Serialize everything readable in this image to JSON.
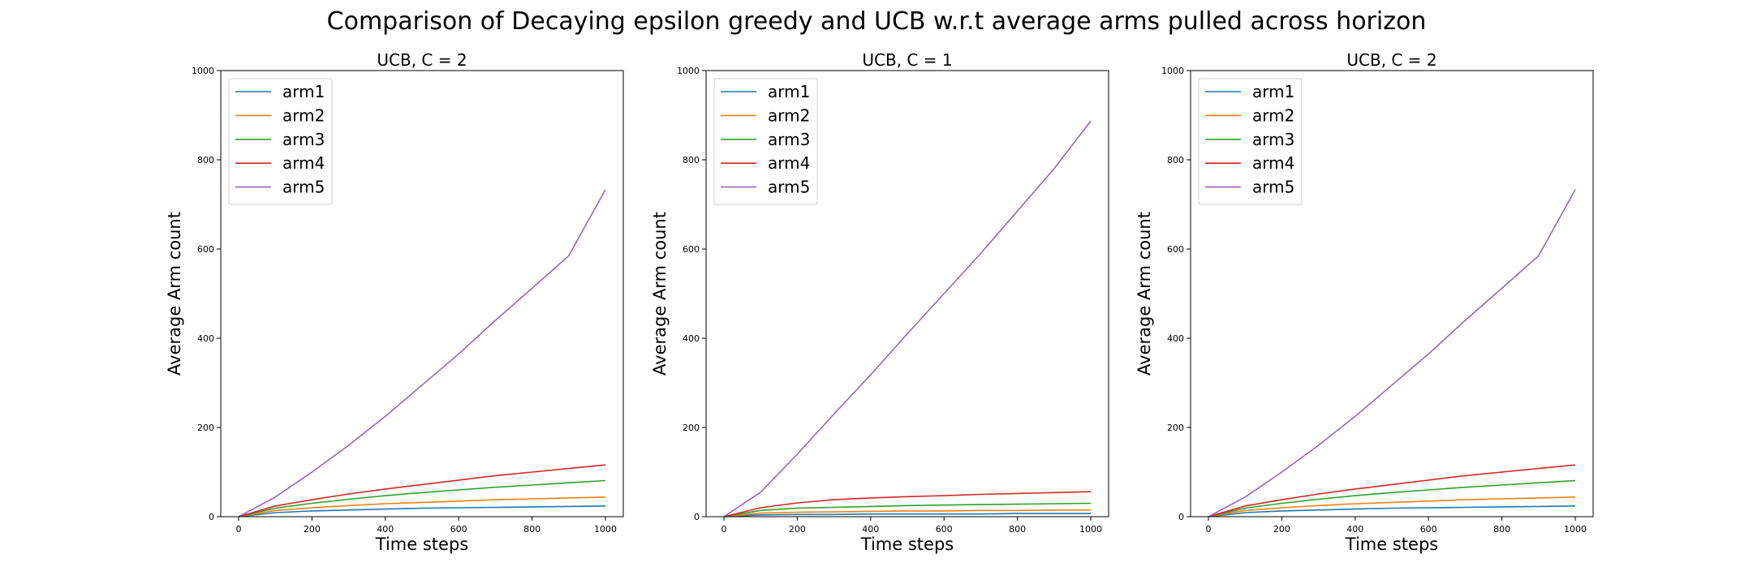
{
  "title": "Comparison of Decaying epsilon greedy and UCB w.r.t average arms pulled across horizon",
  "colors": {
    "arm1": "#1f77b4",
    "arm2": "#ff7f0e",
    "arm3": "#2ca02c",
    "arm4": "#d62728",
    "arm5": "#9467bd"
  },
  "chart_data": [
    {
      "type": "line",
      "title": "UCB, C = 2",
      "xlabel": "Time steps",
      "ylabel": "Average Arm count",
      "xlim": [
        0,
        1000
      ],
      "ylim": [
        0,
        1000
      ],
      "xticks": [
        0,
        200,
        400,
        600,
        800,
        1000
      ],
      "yticks": [
        0,
        200,
        400,
        600,
        800,
        1000
      ],
      "legend": "upper-left",
      "grid": false,
      "x": [
        0,
        100,
        200,
        300,
        400,
        500,
        600,
        700,
        800,
        900,
        1000
      ],
      "series": [
        {
          "name": "arm1",
          "color": "#1f77b4",
          "values": [
            0,
            9,
            13,
            15,
            17,
            19,
            20,
            21,
            22,
            23,
            24
          ]
        },
        {
          "name": "arm2",
          "color": "#ff7f0e",
          "values": [
            0,
            14,
            20,
            25,
            29,
            32,
            35,
            38,
            40,
            42,
            44
          ]
        },
        {
          "name": "arm3",
          "color": "#2ca02c",
          "values": [
            0,
            19,
            30,
            39,
            47,
            54,
            60,
            66,
            71,
            76,
            81
          ]
        },
        {
          "name": "arm4",
          "color": "#d62728",
          "values": [
            0,
            24,
            38,
            51,
            62,
            72,
            82,
            92,
            100,
            108,
            116
          ]
        },
        {
          "name": "arm5",
          "color": "#9467bd",
          "values": [
            0,
            44,
            100,
            160,
            225,
            295,
            365,
            440,
            512,
            585,
            733
          ]
        }
      ]
    },
    {
      "type": "line",
      "title": "UCB, C = 1",
      "xlabel": "Time steps",
      "ylabel": "Average Arm count",
      "xlim": [
        0,
        1000
      ],
      "ylim": [
        0,
        1000
      ],
      "xticks": [
        0,
        200,
        400,
        600,
        800,
        1000
      ],
      "yticks": [
        0,
        200,
        400,
        600,
        800,
        1000
      ],
      "legend": "upper-left",
      "grid": false,
      "x": [
        0,
        100,
        200,
        300,
        400,
        500,
        600,
        700,
        800,
        900,
        1000
      ],
      "series": [
        {
          "name": "arm1",
          "color": "#1f77b4",
          "values": [
            0,
            4,
            5,
            5,
            6,
            6,
            6,
            6,
            7,
            7,
            7
          ]
        },
        {
          "name": "arm2",
          "color": "#ff7f0e",
          "values": [
            0,
            8,
            10,
            11,
            12,
            13,
            13,
            14,
            14,
            15,
            15
          ]
        },
        {
          "name": "arm3",
          "color": "#2ca02c",
          "values": [
            0,
            14,
            19,
            21,
            23,
            25,
            26,
            27,
            28,
            29,
            30
          ]
        },
        {
          "name": "arm4",
          "color": "#d62728",
          "values": [
            0,
            20,
            31,
            38,
            42,
            45,
            47,
            50,
            52,
            54,
            56
          ]
        },
        {
          "name": "arm5",
          "color": "#9467bd",
          "values": [
            0,
            55,
            140,
            230,
            318,
            410,
            500,
            590,
            685,
            780,
            887
          ]
        }
      ]
    },
    {
      "type": "line",
      "title": "UCB, C = 2",
      "xlabel": "Time steps",
      "ylabel": "Average Arm count",
      "xlim": [
        0,
        1000
      ],
      "ylim": [
        0,
        1000
      ],
      "xticks": [
        0,
        200,
        400,
        600,
        800,
        1000
      ],
      "yticks": [
        0,
        200,
        400,
        600,
        800,
        1000
      ],
      "legend": "upper-left",
      "grid": false,
      "x": [
        0,
        100,
        200,
        300,
        400,
        500,
        600,
        700,
        800,
        900,
        1000
      ],
      "series": [
        {
          "name": "arm1",
          "color": "#1f77b4",
          "values": [
            0,
            9,
            13,
            15,
            17,
            19,
            20,
            21,
            22,
            23,
            24
          ]
        },
        {
          "name": "arm2",
          "color": "#ff7f0e",
          "values": [
            0,
            14,
            20,
            25,
            29,
            32,
            35,
            38,
            40,
            42,
            44
          ]
        },
        {
          "name": "arm3",
          "color": "#2ca02c",
          "values": [
            0,
            19,
            30,
            39,
            47,
            54,
            60,
            66,
            71,
            76,
            81
          ]
        },
        {
          "name": "arm4",
          "color": "#d62728",
          "values": [
            0,
            24,
            38,
            51,
            62,
            72,
            82,
            92,
            100,
            108,
            116
          ]
        },
        {
          "name": "arm5",
          "color": "#9467bd",
          "values": [
            0,
            44,
            100,
            160,
            225,
            295,
            365,
            440,
            512,
            585,
            733
          ]
        }
      ]
    }
  ]
}
